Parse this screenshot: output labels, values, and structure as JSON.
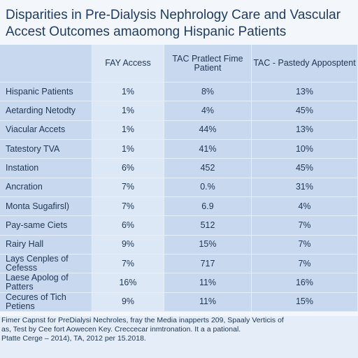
{
  "header": {
    "title": "Disparities in Pre-Dialysis Nephrology Care and Vascular Accest Outcomes amaomong Hispanic Patients"
  },
  "table": {
    "columns": [
      "FAY Access",
      "TAC Pratlect Fime Patient",
      "TAC - Pastedy Apposptent"
    ],
    "rows": [
      [
        "Hispanic Patients",
        "1%",
        "8%",
        "13%"
      ],
      [
        "Aetarding Netodty",
        "1%",
        "4%",
        "45%"
      ],
      [
        "Viacular Accets",
        "1%",
        "44%",
        "13%"
      ],
      [
        "Tatestory TVA",
        "1%",
        "41%",
        "10%"
      ],
      [
        "Instation",
        "6%",
        "452",
        "45%"
      ],
      [
        "Ancration",
        "7%",
        "0.%",
        "31%"
      ],
      [
        "Monta Sugafirsl)",
        "7%",
        "6.9",
        "4%"
      ],
      [
        "Pay-same Ciets",
        "6%",
        "512",
        "7%"
      ],
      [
        "Rairy Hall",
        "9%",
        "15%",
        "7%"
      ],
      [
        "Lays Cenples of Cefesss",
        "7%",
        "717",
        "7%"
      ],
      [
        "Laese Apolog of Patters",
        "16%",
        "11%",
        "16%"
      ],
      [
        "Cecures of Tich Petiens",
        "9%",
        "11%",
        "15%"
      ]
    ]
  },
  "footnote": [
    "Fimer Capnst for PreDialysi Nechroles, fray the Media inapperts 209, Spaaly Verticis of",
    "as, Test by Cee fort Aowecen Key. Creccecar inmtronation. It a a pational.",
    "Ptatte Cerge – 2014), TA, 2012 per 15.2018."
  ]
}
